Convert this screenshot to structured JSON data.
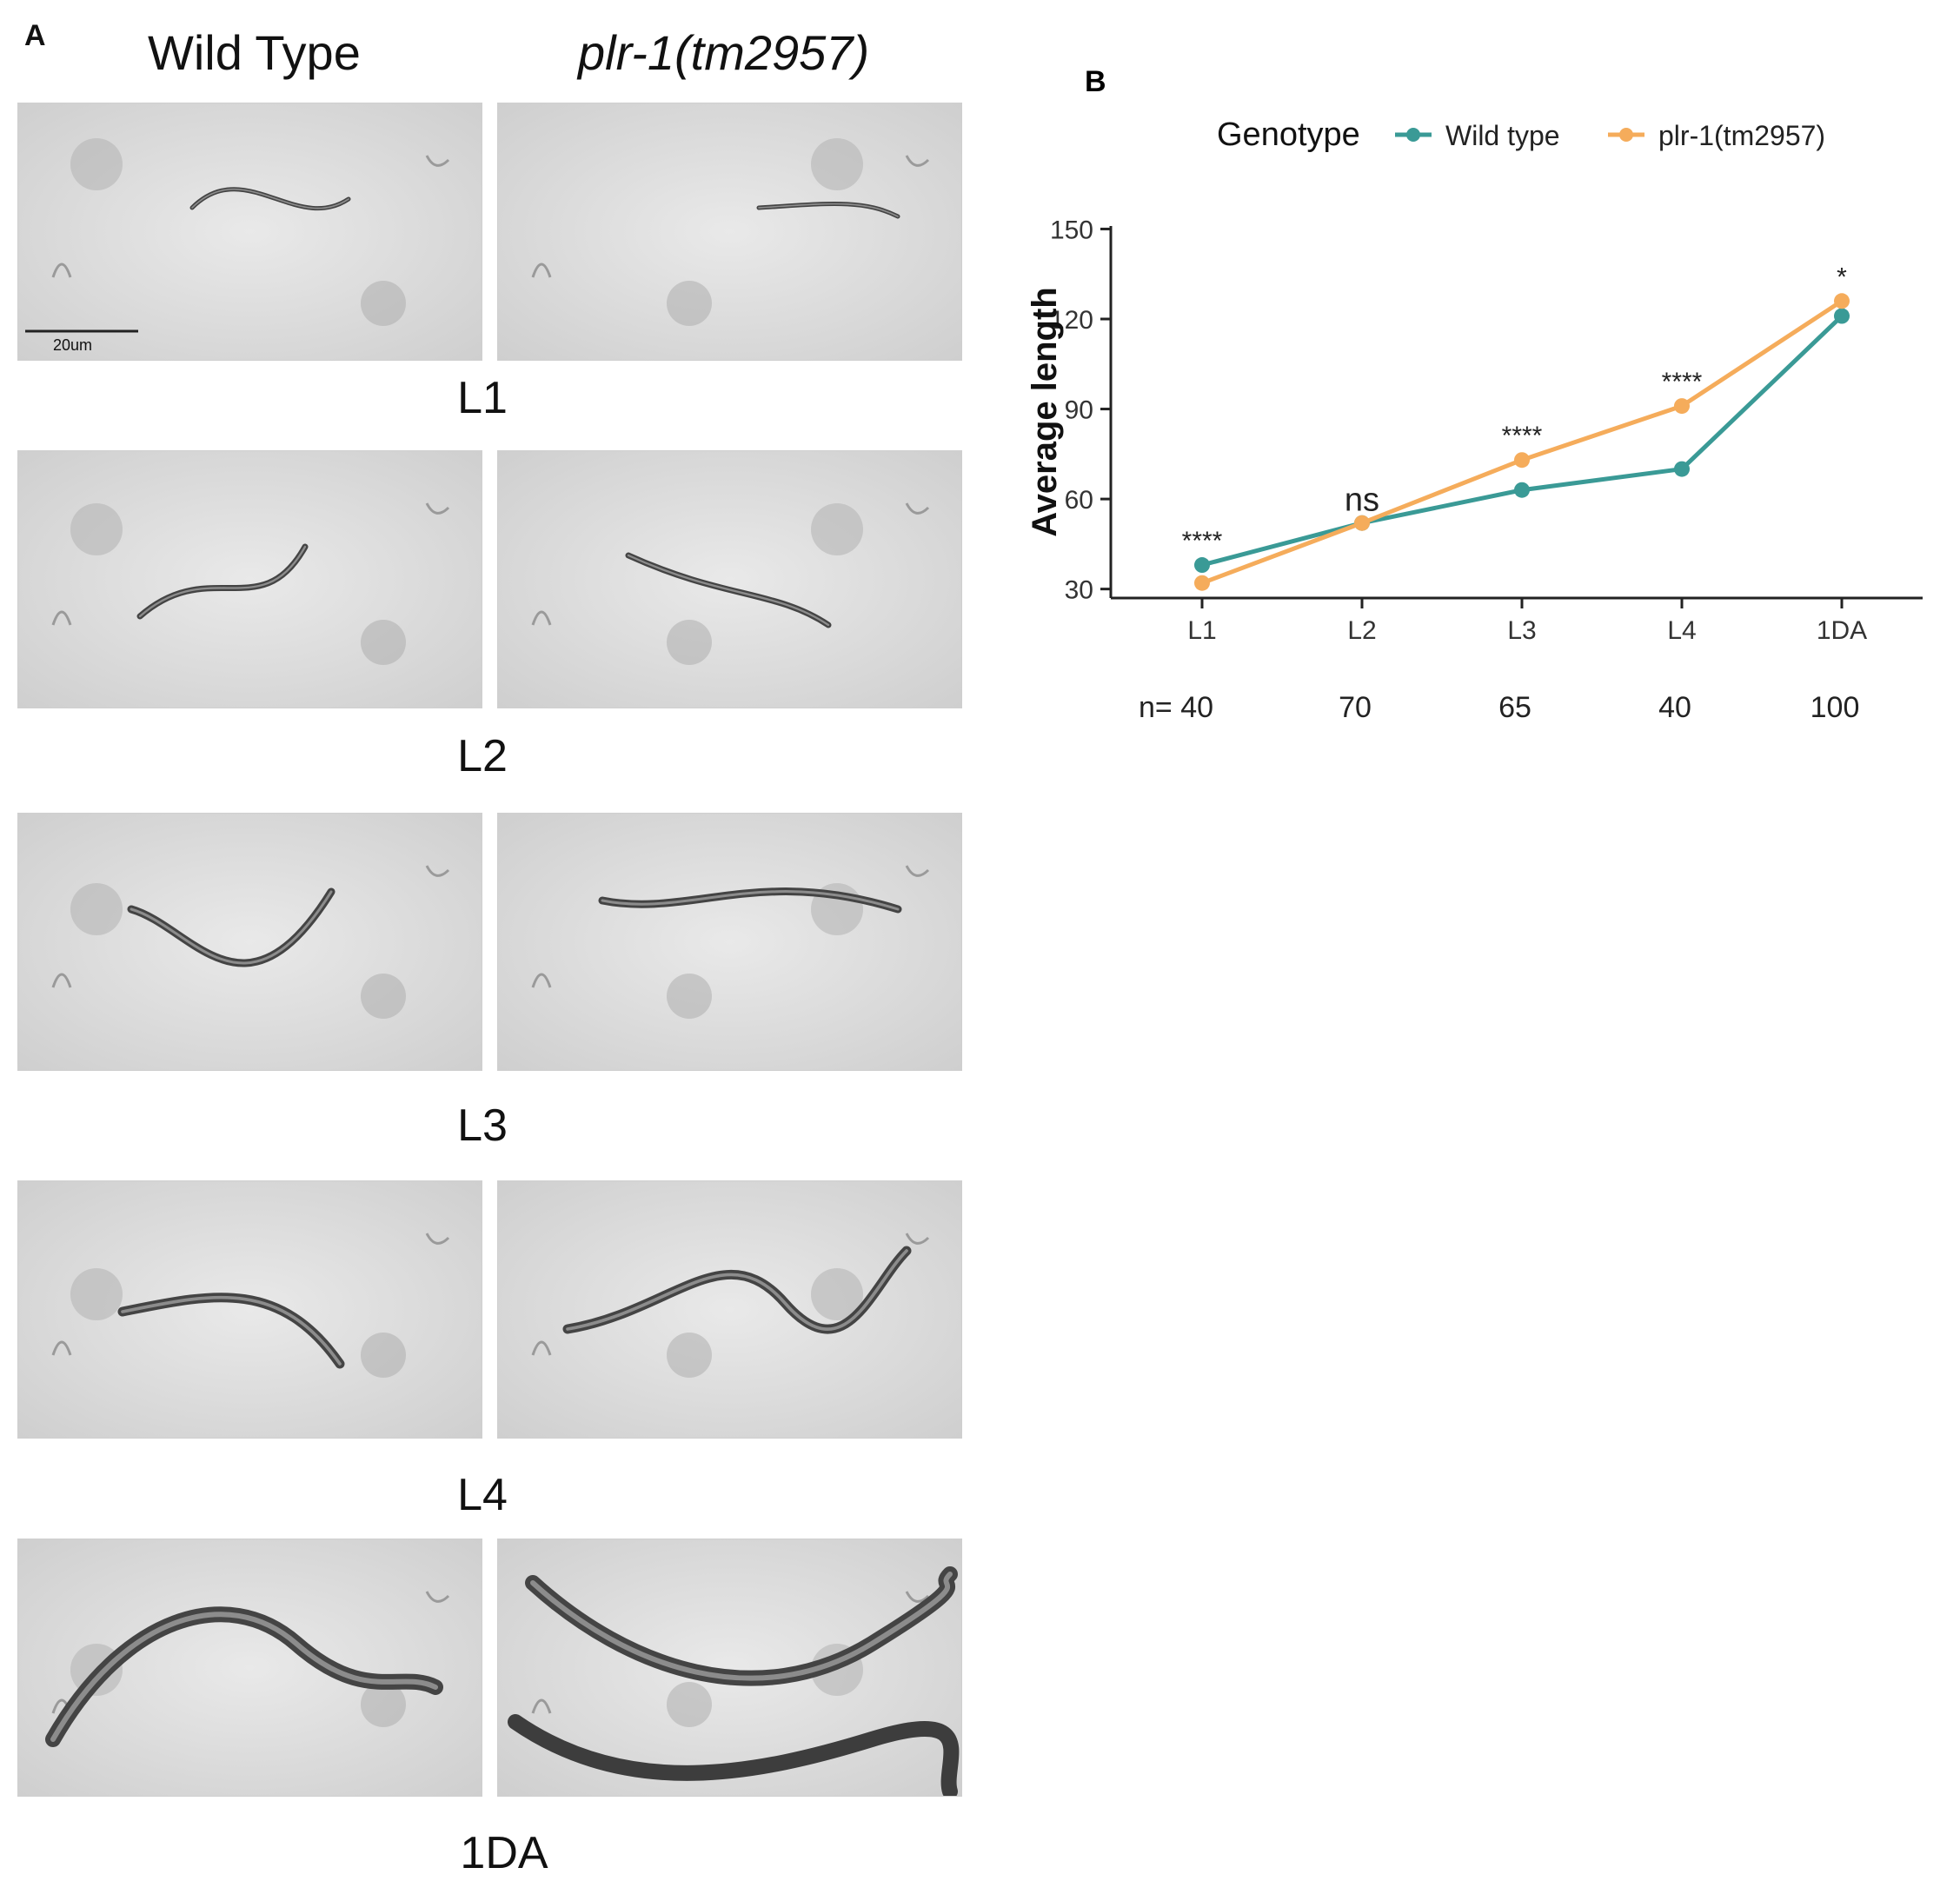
{
  "panel_a": {
    "letter": "A",
    "wild_type_title": "Wild Type",
    "mutant_title": "plr-1(tm2957)",
    "scale_bar_label": "20um",
    "stages": [
      "L1",
      "L2",
      "L3",
      "L4",
      "1DA"
    ]
  },
  "chart_data": {
    "type": "line",
    "panel_letter": "B",
    "legend_title": "Genotype",
    "legend_placement": "top",
    "categories": [
      "L1",
      "L2",
      "L3",
      "L4",
      "1DA"
    ],
    "series": [
      {
        "name": "Wild type",
        "color": "#3a9a96",
        "values": [
          38,
          52,
          63,
          70,
          121
        ]
      },
      {
        "name": "plr-1(tm2957)",
        "color": "#f5ac5b",
        "values": [
          32,
          52,
          73,
          91,
          126
        ]
      }
    ],
    "significance": [
      "****",
      "ns",
      "****",
      "****",
      "*"
    ],
    "sample_size_prefix": "n=",
    "sample_sizes": [
      "40",
      "70",
      "65",
      "40",
      "100"
    ],
    "xlabel": "",
    "ylabel": "Average length",
    "ylim": [
      27,
      151
    ],
    "yticks": [
      30,
      60,
      90,
      120,
      150
    ],
    "grid": false
  }
}
